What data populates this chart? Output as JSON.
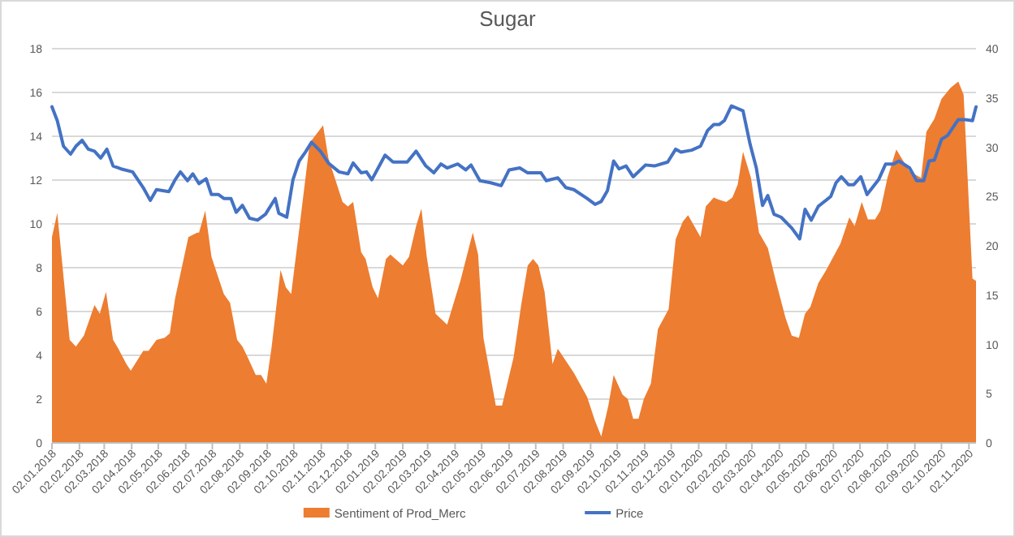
{
  "chart_data": {
    "type": "area",
    "title": "Sugar",
    "legend": "bottom",
    "grid": "y",
    "xlim": [
      "2018-01-02",
      "2020-11-10"
    ],
    "xticks": [
      {
        "value": "2018-01-02",
        "label": "02.01.2018"
      },
      {
        "value": "2018-02-02",
        "label": "02.02.2018"
      },
      {
        "value": "2018-03-02",
        "label": "02.03.2018"
      },
      {
        "value": "2018-04-02",
        "label": "02.04.2018"
      },
      {
        "value": "2018-05-02",
        "label": "02.05.2018"
      },
      {
        "value": "2018-06-02",
        "label": "02.06.2018"
      },
      {
        "value": "2018-07-02",
        "label": "02.07.2018"
      },
      {
        "value": "2018-08-02",
        "label": "02.08.2018"
      },
      {
        "value": "2018-09-02",
        "label": "02.09.2018"
      },
      {
        "value": "2018-10-02",
        "label": "02.10.2018"
      },
      {
        "value": "2018-11-02",
        "label": "02.11.2018"
      },
      {
        "value": "2018-12-02",
        "label": "02.12.2018"
      },
      {
        "value": "2019-01-02",
        "label": "02.01.2019"
      },
      {
        "value": "2019-02-02",
        "label": "02.02.2019"
      },
      {
        "value": "2019-03-02",
        "label": "02.03.2019"
      },
      {
        "value": "2019-04-02",
        "label": "02.04.2019"
      },
      {
        "value": "2019-05-02",
        "label": "02.05.2019"
      },
      {
        "value": "2019-06-02",
        "label": "02.06.2019"
      },
      {
        "value": "2019-07-02",
        "label": "02.07.2019"
      },
      {
        "value": "2019-08-02",
        "label": "02.08.2019"
      },
      {
        "value": "2019-09-02",
        "label": "02.09.2019"
      },
      {
        "value": "2019-10-02",
        "label": "02.10.2019"
      },
      {
        "value": "2019-11-02",
        "label": "02.11.2019"
      },
      {
        "value": "2019-12-02",
        "label": "02.12.2019"
      },
      {
        "value": "2020-01-02",
        "label": "02.01.2020"
      },
      {
        "value": "2020-02-02",
        "label": "02.02.2020"
      },
      {
        "value": "2020-03-02",
        "label": "02.03.2020"
      },
      {
        "value": "2020-04-02",
        "label": "02.04.2020"
      },
      {
        "value": "2020-05-02",
        "label": "02.05.2020"
      },
      {
        "value": "2020-06-02",
        "label": "02.06.2020"
      },
      {
        "value": "2020-07-02",
        "label": "02.07.2020"
      },
      {
        "value": "2020-08-02",
        "label": "02.08.2020"
      },
      {
        "value": "2020-09-02",
        "label": "02.09.2020"
      },
      {
        "value": "2020-10-02",
        "label": "02.10.2020"
      },
      {
        "value": "2020-11-02",
        "label": "02.11.2020"
      }
    ],
    "ylim": [
      0,
      18
    ],
    "yticks": [
      0,
      2,
      4,
      6,
      8,
      10,
      12,
      14,
      16,
      18
    ],
    "y2lim": [
      0,
      40
    ],
    "y2ticks": [
      0,
      5,
      10,
      15,
      20,
      25,
      30,
      35,
      40
    ],
    "series": [
      {
        "name": "Sentiment of Prod_Merc",
        "color": "#ed7d31",
        "x": [
          "2018-01-02",
          "2018-01-08",
          "2018-01-22",
          "2018-01-29",
          "2018-02-07",
          "2018-02-19",
          "2018-02-25",
          "2018-03-04",
          "2018-03-12",
          "2018-03-18",
          "2018-03-27",
          "2018-04-01",
          "2018-04-15",
          "2018-04-21",
          "2018-04-30",
          "2018-05-09",
          "2018-05-15",
          "2018-05-21",
          "2018-06-05",
          "2018-06-15",
          "2018-06-17",
          "2018-06-24",
          "2018-07-01",
          "2018-07-15",
          "2018-07-22",
          "2018-07-30",
          "2018-08-05",
          "2018-08-11",
          "2018-08-20",
          "2018-08-26",
          "2018-09-01",
          "2018-09-07",
          "2018-09-17",
          "2018-09-23",
          "2018-09-29",
          "2018-10-07",
          "2018-10-20",
          "2018-11-04",
          "2018-11-10",
          "2018-11-26",
          "2018-12-02",
          "2018-12-08",
          "2018-12-17",
          "2018-12-22",
          "2018-12-30",
          "2019-01-05",
          "2019-01-14",
          "2019-01-19",
          "2019-02-02",
          "2019-02-09",
          "2019-02-17",
          "2019-02-23",
          "2019-03-01",
          "2019-03-11",
          "2019-03-24",
          "2019-04-08",
          "2019-04-22",
          "2019-04-28",
          "2019-05-04",
          "2019-05-18",
          "2019-05-25",
          "2019-06-07",
          "2019-06-16",
          "2019-06-23",
          "2019-06-29",
          "2019-07-05",
          "2019-07-12",
          "2019-07-21",
          "2019-07-27",
          "2019-08-14",
          "2019-08-29",
          "2019-09-07",
          "2019-09-14",
          "2019-09-22",
          "2019-09-28",
          "2019-10-08",
          "2019-10-14",
          "2019-10-20",
          "2019-10-26",
          "2019-11-01",
          "2019-11-09",
          "2019-11-17",
          "2019-11-29",
          "2019-12-07",
          "2019-12-15",
          "2019-12-21",
          "2020-01-04",
          "2020-01-10",
          "2020-01-19",
          "2020-01-25",
          "2020-02-02",
          "2020-02-09",
          "2020-02-15",
          "2020-02-21",
          "2020-03-01",
          "2020-03-10",
          "2020-03-20",
          "2020-03-29",
          "2020-04-09",
          "2020-04-16",
          "2020-04-24",
          "2020-05-01",
          "2020-05-07",
          "2020-05-16",
          "2020-05-25",
          "2020-06-10",
          "2020-06-20",
          "2020-06-26",
          "2020-07-04",
          "2020-07-11",
          "2020-07-19",
          "2020-07-25",
          "2020-08-02",
          "2020-08-12",
          "2020-08-27",
          "2020-09-09",
          "2020-09-15",
          "2020-09-24",
          "2020-10-02",
          "2020-10-12",
          "2020-10-21",
          "2020-10-27",
          "2020-11-06",
          "2020-11-10"
        ],
        "values": [
          9.4,
          10.5,
          4.7,
          4.4,
          4.9,
          6.3,
          5.9,
          6.9,
          4.7,
          4.3,
          3.6,
          3.3,
          4.2,
          4.2,
          4.7,
          4.8,
          5.0,
          6.6,
          9.4,
          9.6,
          9.6,
          10.6,
          8.5,
          6.8,
          6.4,
          4.7,
          4.4,
          3.9,
          3.1,
          3.1,
          2.7,
          4.4,
          7.9,
          7.1,
          6.8,
          9.4,
          13.7,
          14.5,
          13.0,
          11.0,
          10.8,
          11.0,
          8.7,
          8.4,
          7.1,
          6.6,
          8.4,
          8.6,
          8.1,
          8.5,
          9.9,
          10.7,
          8.5,
          5.9,
          5.4,
          7.4,
          9.6,
          8.6,
          4.8,
          1.7,
          1.7,
          3.9,
          6.4,
          8.1,
          8.4,
          8.1,
          6.9,
          3.6,
          4.3,
          3.2,
          2.1,
          1.0,
          0.3,
          1.7,
          3.1,
          2.2,
          2.0,
          1.1,
          1.1,
          2.0,
          2.7,
          5.2,
          6.1,
          9.3,
          10.1,
          10.4,
          9.4,
          10.8,
          11.2,
          11.1,
          11.0,
          11.2,
          11.8,
          13.3,
          12.1,
          9.6,
          8.9,
          7.4,
          5.7,
          4.9,
          4.8,
          5.9,
          6.2,
          7.3,
          7.9,
          9.1,
          10.3,
          9.9,
          11.0,
          10.2,
          10.2,
          10.6,
          12.1,
          13.4,
          12.4,
          12.1,
          14.2,
          14.8,
          15.7,
          16.2,
          16.5,
          15.9,
          7.5,
          7.4
        ]
      },
      {
        "name": "Price",
        "type": "line",
        "axis": "y2",
        "color": "#4472c4",
        "x": [
          "2018-01-02",
          "2018-01-08",
          "2018-01-15",
          "2018-01-23",
          "2018-01-29",
          "2018-02-05",
          "2018-02-12",
          "2018-02-19",
          "2018-02-26",
          "2018-03-05",
          "2018-03-12",
          "2018-03-21",
          "2018-04-03",
          "2018-04-15",
          "2018-04-23",
          "2018-04-30",
          "2018-05-14",
          "2018-05-21",
          "2018-05-27",
          "2018-06-04",
          "2018-06-10",
          "2018-06-17",
          "2018-06-25",
          "2018-07-01",
          "2018-07-09",
          "2018-07-15",
          "2018-07-23",
          "2018-07-29",
          "2018-08-05",
          "2018-08-13",
          "2018-08-22",
          "2018-08-31",
          "2018-09-11",
          "2018-09-15",
          "2018-09-24",
          "2018-10-01",
          "2018-10-08",
          "2018-10-15",
          "2018-10-22",
          "2018-11-01",
          "2018-11-10",
          "2018-11-22",
          "2018-12-02",
          "2018-12-08",
          "2018-12-17",
          "2018-12-23",
          "2018-12-29",
          "2019-01-13",
          "2019-01-22",
          "2019-02-07",
          "2019-02-17",
          "2019-02-28",
          "2019-03-09",
          "2019-03-17",
          "2019-03-24",
          "2019-04-05",
          "2019-04-14",
          "2019-04-20",
          "2019-04-30",
          "2019-05-12",
          "2019-05-24",
          "2019-06-02",
          "2019-06-14",
          "2019-06-23",
          "2019-07-08",
          "2019-07-14",
          "2019-07-27",
          "2019-08-05",
          "2019-08-14",
          "2019-08-29",
          "2019-09-07",
          "2019-09-14",
          "2019-09-21",
          "2019-09-28",
          "2019-10-04",
          "2019-10-12",
          "2019-10-20",
          "2019-11-03",
          "2019-11-13",
          "2019-11-28",
          "2019-12-07",
          "2019-12-13",
          "2019-12-25",
          "2020-01-04",
          "2020-01-12",
          "2020-01-19",
          "2020-01-25",
          "2020-01-31",
          "2020-02-08",
          "2020-02-21",
          "2020-02-29",
          "2020-03-07",
          "2020-03-14",
          "2020-03-20",
          "2020-03-27",
          "2020-04-04",
          "2020-04-16",
          "2020-04-25",
          "2020-05-01",
          "2020-05-08",
          "2020-05-16",
          "2020-05-30",
          "2020-06-05",
          "2020-06-11",
          "2020-06-19",
          "2020-06-25",
          "2020-07-03",
          "2020-07-10",
          "2020-07-23",
          "2020-07-31",
          "2020-08-09",
          "2020-08-15",
          "2020-08-27",
          "2020-09-04",
          "2020-09-12",
          "2020-09-18",
          "2020-09-24",
          "2020-10-02",
          "2020-10-09",
          "2020-10-21",
          "2020-10-29",
          "2020-11-06",
          "2020-11-10"
        ],
        "values": [
          34.1,
          32.7,
          30.1,
          29.3,
          30.1,
          30.7,
          29.8,
          29.6,
          28.9,
          29.8,
          28.1,
          27.8,
          27.5,
          25.9,
          24.6,
          25.7,
          25.5,
          26.7,
          27.5,
          26.6,
          27.3,
          26.3,
          26.8,
          25.2,
          25.2,
          24.8,
          24.8,
          23.4,
          24.1,
          22.8,
          22.6,
          23.2,
          24.8,
          23.3,
          22.9,
          26.7,
          28.6,
          29.5,
          30.5,
          29.6,
          28.4,
          27.5,
          27.3,
          28.4,
          27.4,
          27.5,
          26.7,
          29.2,
          28.5,
          28.5,
          29.6,
          28.1,
          27.4,
          28.3,
          27.9,
          28.3,
          27.7,
          28.2,
          26.6,
          26.4,
          26.1,
          27.7,
          27.9,
          27.4,
          27.4,
          26.6,
          26.9,
          25.9,
          25.7,
          24.8,
          24.2,
          24.5,
          25.6,
          28.6,
          27.8,
          28.1,
          27.0,
          28.2,
          28.1,
          28.5,
          29.8,
          29.5,
          29.7,
          30.1,
          31.7,
          32.3,
          32.3,
          32.7,
          34.2,
          33.7,
          30.3,
          27.9,
          24.1,
          25.1,
          23.2,
          22.9,
          21.8,
          20.7,
          23.7,
          22.6,
          24.0,
          25.0,
          26.4,
          27.0,
          26.2,
          26.2,
          27.0,
          25.2,
          26.7,
          28.3,
          28.3,
          28.6,
          27.9,
          26.6,
          26.6,
          28.6,
          28.7,
          30.8,
          31.2,
          32.8,
          32.8,
          32.7,
          34.1
        ]
      }
    ]
  }
}
